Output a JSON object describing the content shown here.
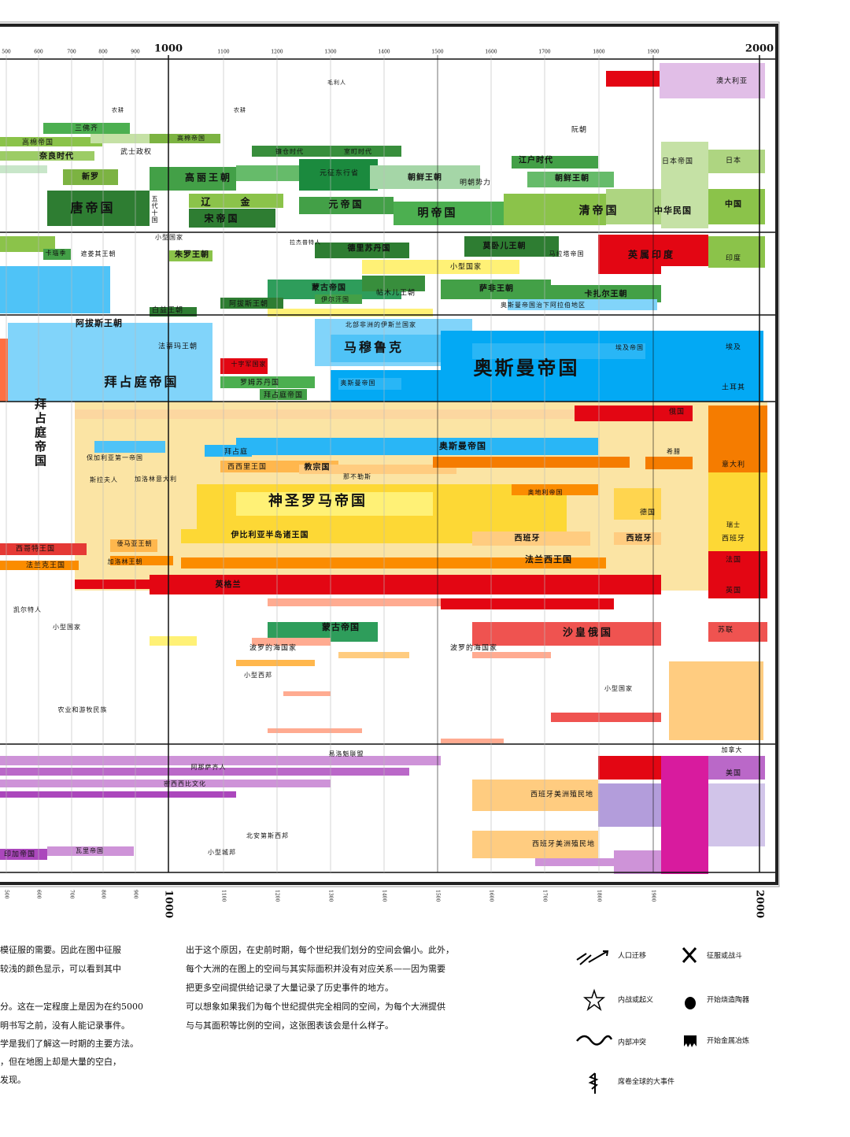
{
  "timeline": {
    "years": [
      500,
      600,
      700,
      800,
      900,
      1000,
      1100,
      1200,
      1300,
      1400,
      1500,
      1600,
      1700,
      1800,
      1900,
      2000
    ],
    "labels": [
      "毛利人",
      "农耕",
      "农耕",
      "三佛齐",
      "高棉帝国",
      "高棉帝国",
      "武士政权",
      "奈良时代",
      "镰仓时代",
      "室町时代",
      "新罗",
      "高丽王朝",
      "朝鲜王朝",
      "朝鲜王朝",
      "江户时代",
      "阮朝",
      "元征东行省",
      "明朝势力",
      "唐帝国",
      "辽",
      "金",
      "宋帝国",
      "元帝国",
      "明帝国",
      "清帝国",
      "五代十国",
      "日本帝国",
      "中华民国",
      "小型国家",
      "拉杰普特人",
      "德里苏丹国",
      "莫卧儿王朝",
      "英属印度",
      "卡瑙季",
      "遮娄其王朝",
      "朱罗王朝",
      "马拉塔帝国",
      "小型国家",
      "蒙古帝国",
      "帖木儿王朝",
      "萨非王朝",
      "卡扎尔王朝",
      "伊尔汗国",
      "阿拔斯王朝",
      "白益王朝",
      "阿拔斯王朝",
      "奥斯曼帝国治下阿拉伯地区",
      "北部非洲的伊斯兰国家",
      "法蒂玛王朝",
      "马穆鲁克",
      "奥斯曼帝国",
      "拜占庭帝国",
      "拜占庭帝国",
      "十字军国家",
      "罗姆苏丹国",
      "拜占庭帝国",
      "奥斯曼帝国",
      "埃及帝国",
      "奥斯曼帝国",
      "拜占庭",
      "保加利亚第一帝国",
      "西西里王国",
      "教宗国",
      "那不勒斯",
      "斯拉夫人",
      "加洛林意大利",
      "神圣罗马帝国",
      "奥地利帝国",
      "伊比利亚半岛诸王国",
      "西班牙",
      "西班牙",
      "西哥特王国",
      "倭马亚王朝",
      "法兰克王国",
      "加洛林王朝",
      "法兰西王国",
      "英格兰",
      "蒙古帝国",
      "沙皇俄国",
      "小型国家",
      "凯尔特人",
      "波罗的海国家",
      "波罗的海国家",
      "小型西邦",
      "农业和游牧民族",
      "小型国家",
      "易洛魁联盟",
      "阿那萨齐人",
      "密西西比文化",
      "北安第斯西邦",
      "小型城邦",
      "西班牙美洲殖民地",
      "西班牙美洲殖民地",
      "印加帝国",
      "瓦里帝国",
      "澳大利亚",
      "日本",
      "中国",
      "印度",
      "土耳其",
      "俄国",
      "意大利",
      "法国",
      "英国",
      "苏联",
      "美国",
      "加拿大",
      "德国",
      "西班牙",
      "瑞士",
      "希腊",
      "埃及"
    ]
  },
  "text": {
    "left": [
      "模征服的需要。因此在图中征服",
      "较浅的颜色显示，可以看到其中",
      "分。这在一定程度上是因为在约5000",
      "明书写之前，没有人能记录事件。",
      "学是我们了解这一时期的主要方法。",
      "，但在地图上却是大量的空白，",
      "发现。"
    ],
    "middle": [
      "出于这个原因，在史前时期，每个世纪我们划分的空间会偏小。此外，",
      "每个大洲的在图上的空间与其实际面积并没有对应关系——因为需要",
      "把更多空间提供给记录了大量记录了历史事件的地方。",
      "可以想象如果我们为每个世纪提供完全相同的空间，为每个大洲提供",
      "与与其面积等比例的空间，这张图表该会是什么样子。"
    ]
  },
  "legend": [
    "人口迁移",
    "征服或战斗",
    "内战或起义",
    "开始烧造陶器",
    "内部冲突",
    "开始金属冶炼",
    "席卷全球的大事件"
  ]
}
